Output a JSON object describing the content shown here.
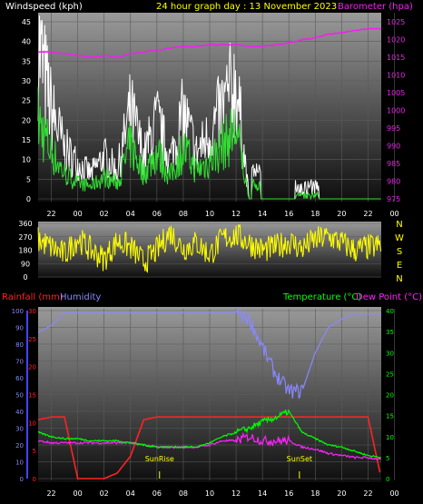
{
  "header": {
    "left": "Windspeed (kph)",
    "center": "24 hour graph day : 13 November 2023",
    "right": "Barometer (hpa)"
  },
  "bottom_header": {
    "rain": "Rainfall (mm)",
    "hum": "Humidity",
    "temp": "Temperature (°C)",
    "dew": "Dew Point (°C)"
  },
  "sun": {
    "rise": "SunRise",
    "set": "SunSet"
  },
  "colors": {
    "wind_gust": "#ffffff",
    "wind_avg": "#33dd33",
    "baro": "#ee22ee",
    "dir": "#ffff00",
    "rain": "#ff2222",
    "hum": "#8888ff",
    "temp": "#00ff00",
    "dew": "#ff22ff",
    "panel_top": "#9a9a9a",
    "panel_bottom": "#101010"
  },
  "chart_data": [
    {
      "type": "line",
      "title": "24 hour graph day : 13 November 2023",
      "xticks": [
        "22",
        "00",
        "02",
        "04",
        "06",
        "08",
        "10",
        "12",
        "14",
        "16",
        "18",
        "20",
        "22",
        "00"
      ],
      "y_left": {
        "label": "Windspeed (kph)",
        "ticks": [
          "0",
          "5",
          "10",
          "15",
          "20",
          "25",
          "30",
          "35",
          "40",
          "45"
        ],
        "range": [
          0,
          45
        ]
      },
      "y_right": {
        "label": "Barometer (hpa)",
        "ticks": [
          "975",
          "980",
          "985",
          "990",
          "995",
          "1000",
          "1005",
          "1010",
          "1015",
          "1020",
          "1025"
        ],
        "range": [
          975,
          1025
        ]
      },
      "x_hours": [
        0,
        1,
        2,
        3,
        4,
        5,
        6,
        7,
        8,
        9,
        10,
        11,
        12,
        13,
        14,
        15,
        16,
        17,
        18,
        19,
        20,
        21,
        22,
        23,
        24,
        25,
        26
      ],
      "series": [
        {
          "name": "Gust",
          "values": [
            44,
            25,
            14,
            10,
            7,
            12,
            8,
            25,
            12,
            22,
            11,
            24,
            13,
            18,
            26,
            33,
            0,
            0,
            0,
            0,
            0,
            0,
            0,
            0,
            0,
            0,
            0
          ]
        },
        {
          "name": "Average",
          "values": [
            25,
            15,
            8,
            5,
            4,
            7,
            5,
            17,
            8,
            15,
            7,
            16,
            9,
            12,
            17,
            22,
            0,
            0,
            0,
            0,
            0,
            0,
            0,
            0,
            0,
            0,
            0
          ]
        },
        {
          "name": "Barometer",
          "values": [
            1016.5,
            1016.5,
            1016,
            1015.5,
            1015,
            1015.5,
            1015,
            1016,
            1016.5,
            1017,
            1017.5,
            1018,
            1018,
            1018.5,
            1018.5,
            1018.5,
            1018,
            1018,
            1018.5,
            1019,
            1020,
            1020.5,
            1021.5,
            1022,
            1022.5,
            1023,
            1023
          ]
        }
      ]
    },
    {
      "type": "line",
      "yticks": [
        "0",
        "90",
        "180",
        "270",
        "360"
      ],
      "y_range": [
        0,
        360
      ],
      "compass": [
        "N",
        "W",
        "S",
        "E",
        "N"
      ],
      "series": [
        {
          "name": "Direction",
          "values": [
            250,
            200,
            150,
            260,
            180,
            120,
            240,
            200,
            100,
            180,
            300,
            190,
            230,
            150,
            260,
            280,
            230,
            180,
            200,
            240,
            190,
            250,
            270,
            230,
            180,
            200,
            210
          ]
        }
      ]
    },
    {
      "type": "line",
      "xticks": [
        "22",
        "00",
        "02",
        "04",
        "06",
        "08",
        "10",
        "12",
        "14",
        "16",
        "18",
        "20",
        "22",
        "00"
      ],
      "y_hum": {
        "label": "Humidity",
        "ticks": [
          "0",
          "10",
          "20",
          "30",
          "40",
          "50",
          "60",
          "70",
          "80",
          "90",
          "100"
        ],
        "range": [
          0,
          100
        ]
      },
      "y_rain": {
        "label": "Rainfall (mm)",
        "ticks": [
          "0",
          "5",
          "10",
          "15",
          "20",
          "25",
          "30"
        ],
        "range": [
          0,
          30
        ]
      },
      "y_temp": {
        "label": "Temperature (°C)",
        "ticks": [
          "0",
          "5",
          "10",
          "15",
          "20",
          "25",
          "30",
          "35",
          "40"
        ],
        "range": [
          0,
          40
        ]
      },
      "x_hours": [
        0,
        1,
        2,
        3,
        4,
        5,
        6,
        7,
        8,
        9,
        10,
        11,
        12,
        13,
        14,
        15,
        16,
        17,
        18,
        19,
        20,
        21,
        22,
        23,
        24,
        25,
        26
      ],
      "series": [
        {
          "name": "Humidity",
          "values": [
            87,
            91,
            99,
            99,
            99,
            99,
            99,
            99,
            99,
            99,
            99,
            99,
            99,
            99,
            99,
            99,
            95,
            78,
            62,
            52,
            52,
            75,
            90,
            95,
            98,
            98,
            98
          ]
        },
        {
          "name": "Rainfall",
          "values": [
            10.5,
            11,
            11,
            0,
            0,
            0,
            1,
            4,
            10.5,
            11,
            11,
            11,
            11,
            11,
            11,
            11,
            11,
            11,
            11,
            11,
            11,
            11,
            11,
            11,
            11,
            11,
            0
          ]
        },
        {
          "name": "Temperature",
          "values": [
            11,
            10,
            9.5,
            9.5,
            9,
            9,
            9,
            8.5,
            8,
            7.5,
            7.5,
            7.5,
            7.5,
            8.5,
            10,
            11,
            12,
            13.5,
            14.5,
            16,
            11,
            9.5,
            8,
            7.5,
            6.5,
            5.5,
            5
          ]
        },
        {
          "name": "Dew Point",
          "values": [
            9,
            8.5,
            8.5,
            8.5,
            8.5,
            8.5,
            8.5,
            8.5,
            8,
            7.5,
            7.5,
            7.5,
            7.5,
            8,
            9,
            9,
            10,
            9,
            9,
            9,
            7.5,
            7,
            6,
            5.5,
            5,
            5,
            4.5
          ]
        }
      ],
      "sun_marks_hours": [
        9.2,
        19.8
      ]
    }
  ]
}
